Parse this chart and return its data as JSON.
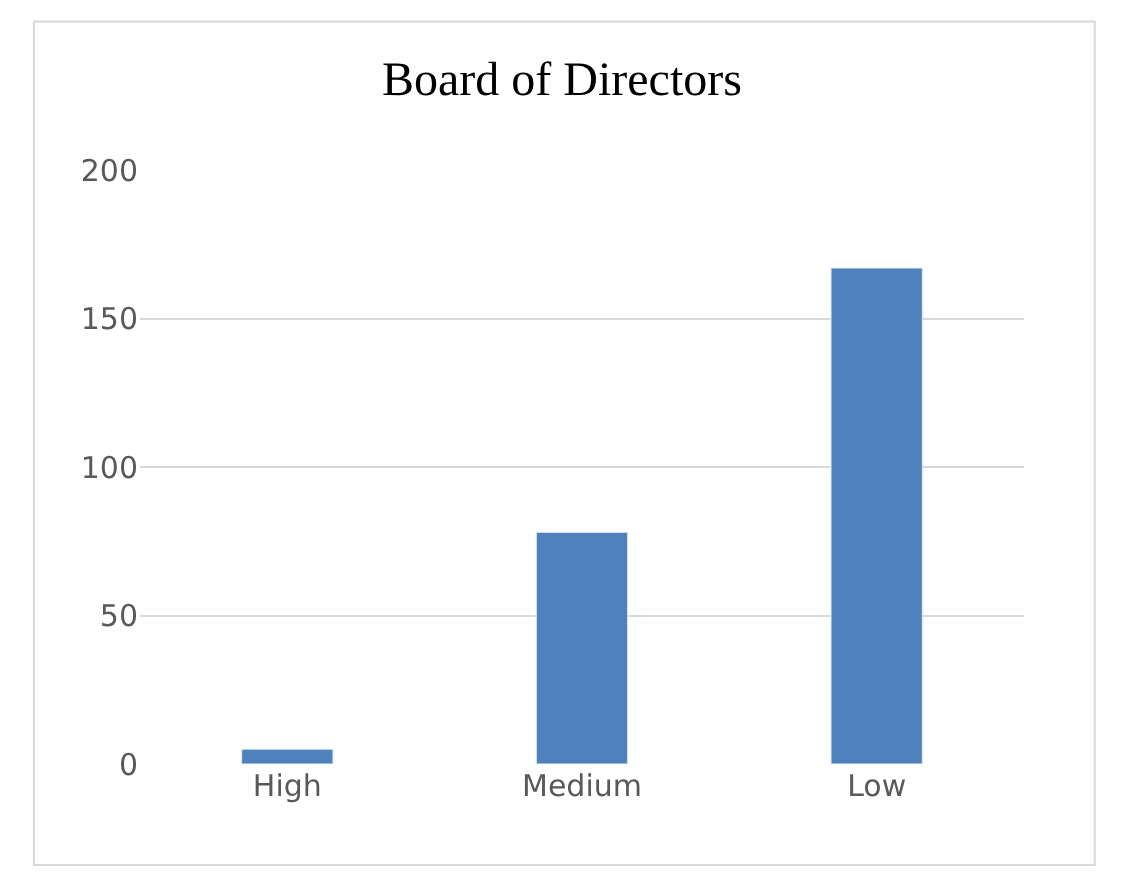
{
  "chart_data": {
    "type": "bar",
    "title": "Board of Directors",
    "categories": [
      "High",
      "Medium",
      "Low"
    ],
    "values": [
      5,
      78,
      167
    ],
    "color": "#4f81bd",
    "ylim": [
      0,
      200
    ],
    "yticks": [
      0,
      50,
      100,
      150,
      200
    ],
    "grid": "y"
  }
}
